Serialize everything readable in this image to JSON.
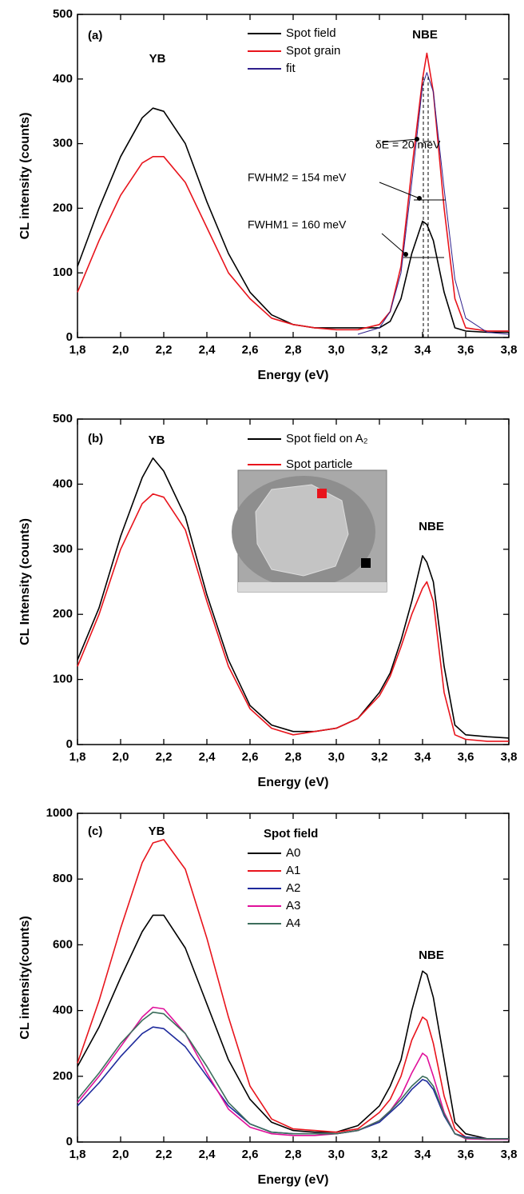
{
  "chart_data": [
    {
      "type": "line",
      "x": [
        1.8,
        1.9,
        2.0,
        2.1,
        2.15,
        2.2,
        2.3,
        2.4,
        2.5,
        2.6,
        2.7,
        2.8,
        2.9,
        3.0,
        3.1,
        3.2,
        3.25,
        3.3,
        3.35,
        3.4,
        3.42,
        3.45,
        3.5,
        3.55,
        3.6,
        3.7,
        3.8
      ],
      "series": [
        {
          "name": "Spot field",
          "color": "#000000",
          "values": [
            110,
            200,
            280,
            340,
            355,
            350,
            300,
            210,
            130,
            70,
            35,
            20,
            15,
            15,
            15,
            15,
            25,
            60,
            130,
            180,
            175,
            150,
            70,
            15,
            10,
            8,
            8
          ]
        },
        {
          "name": "Spot grain",
          "color": "#e8141c",
          "values": [
            70,
            150,
            220,
            270,
            280,
            280,
            240,
            170,
            100,
            60,
            30,
            20,
            15,
            12,
            12,
            20,
            40,
            110,
            260,
            400,
            440,
            380,
            200,
            60,
            15,
            10,
            10
          ]
        },
        {
          "name": "fit",
          "color": "#2e1f8c",
          "values": [
            null,
            null,
            null,
            null,
            null,
            null,
            null,
            null,
            null,
            null,
            null,
            null,
            null,
            null,
            5,
            15,
            40,
            100,
            240,
            390,
            410,
            380,
            230,
            90,
            30,
            8,
            5
          ]
        }
      ],
      "xlim": [
        1.8,
        3.8
      ],
      "ylim": [
        0,
        500
      ],
      "xticks": [
        {
          "value": 1.8,
          "label": "1,8"
        },
        {
          "value": 2.0,
          "label": "2,0"
        },
        {
          "value": 2.2,
          "label": "2,2"
        },
        {
          "value": 2.4,
          "label": "2,4"
        },
        {
          "value": 2.6,
          "label": "2,6"
        },
        {
          "value": 2.8,
          "label": "2,8"
        },
        {
          "value": 3.0,
          "label": "3,0"
        },
        {
          "value": 3.2,
          "label": "3,2"
        },
        {
          "value": 3.4,
          "label": "3,4"
        },
        {
          "value": 3.6,
          "label": "3,6"
        },
        {
          "value": 3.8,
          "label": "3,8"
        }
      ],
      "yticks": [
        0,
        100,
        200,
        300,
        400,
        500
      ],
      "x_label": "Energy (eV)",
      "y_label": "CL intensity (counts)",
      "annotations": [
        "(a)",
        "YB",
        "NBE",
        "δE = 20 meV",
        "FWHM2 = 154 meV",
        "FWHM1 = 160 meV"
      ]
    },
    {
      "type": "line",
      "x": [
        1.8,
        1.9,
        2.0,
        2.1,
        2.15,
        2.2,
        2.3,
        2.4,
        2.5,
        2.6,
        2.7,
        2.8,
        2.9,
        3.0,
        3.1,
        3.2,
        3.25,
        3.3,
        3.35,
        3.4,
        3.42,
        3.45,
        3.5,
        3.55,
        3.6,
        3.7,
        3.8
      ],
      "series": [
        {
          "name": "Spot field on A₂",
          "color": "#000000",
          "values": [
            130,
            210,
            320,
            410,
            440,
            420,
            350,
            230,
            130,
            60,
            30,
            20,
            20,
            25,
            40,
            80,
            110,
            160,
            220,
            290,
            280,
            250,
            120,
            30,
            15,
            12,
            10
          ]
        },
        {
          "name": "Spot particle",
          "color": "#e8141c",
          "values": [
            120,
            200,
            300,
            370,
            385,
            380,
            330,
            220,
            120,
            55,
            25,
            15,
            20,
            25,
            40,
            75,
            105,
            150,
            200,
            240,
            250,
            220,
            80,
            15,
            8,
            5,
            5
          ]
        }
      ],
      "xlim": [
        1.8,
        3.8
      ],
      "ylim": [
        0,
        500
      ],
      "xticks": [
        {
          "value": 1.8,
          "label": "1,8"
        },
        {
          "value": 2.0,
          "label": "2,0"
        },
        {
          "value": 2.2,
          "label": "2,2"
        },
        {
          "value": 2.4,
          "label": "2,4"
        },
        {
          "value": 2.6,
          "label": "2,6"
        },
        {
          "value": 2.8,
          "label": "2,8"
        },
        {
          "value": 3.0,
          "label": "3,0"
        },
        {
          "value": 3.2,
          "label": "3,2"
        },
        {
          "value": 3.4,
          "label": "3,4"
        },
        {
          "value": 3.6,
          "label": "3,6"
        },
        {
          "value": 3.8,
          "label": "3,8"
        }
      ],
      "yticks": [
        0,
        100,
        200,
        300,
        400,
        500
      ],
      "x_label": "Energy (eV)",
      "y_label": "CL Intensity (counts)",
      "annotations": [
        "(b)",
        "YB",
        "NBE"
      ]
    },
    {
      "type": "line",
      "x": [
        1.8,
        1.9,
        2.0,
        2.1,
        2.15,
        2.2,
        2.3,
        2.4,
        2.5,
        2.6,
        2.7,
        2.8,
        2.9,
        3.0,
        3.1,
        3.2,
        3.25,
        3.3,
        3.35,
        3.4,
        3.42,
        3.45,
        3.5,
        3.55,
        3.6,
        3.7,
        3.8
      ],
      "legend_title": "Spot field",
      "series": [
        {
          "name": "A0",
          "color": "#000000",
          "values": [
            230,
            350,
            500,
            640,
            690,
            690,
            590,
            420,
            250,
            130,
            60,
            35,
            30,
            30,
            50,
            110,
            170,
            250,
            400,
            520,
            510,
            440,
            250,
            60,
            25,
            10,
            10
          ]
        },
        {
          "name": "A1",
          "color": "#e8141c",
          "values": [
            240,
            430,
            650,
            850,
            910,
            920,
            830,
            620,
            380,
            170,
            70,
            40,
            35,
            30,
            40,
            90,
            130,
            200,
            310,
            380,
            370,
            300,
            140,
            40,
            15,
            10,
            10
          ]
        },
        {
          "name": "A2",
          "color": "#1e2a9c",
          "values": [
            110,
            180,
            260,
            330,
            350,
            345,
            290,
            200,
            110,
            55,
            30,
            25,
            25,
            25,
            35,
            60,
            90,
            120,
            160,
            190,
            185,
            160,
            80,
            25,
            15,
            10,
            10
          ]
        },
        {
          "name": "A3",
          "color": "#e0109a",
          "values": [
            120,
            200,
            290,
            380,
            410,
            405,
            330,
            210,
            100,
            45,
            25,
            20,
            20,
            25,
            35,
            65,
            95,
            140,
            210,
            270,
            260,
            200,
            90,
            25,
            10,
            8,
            8
          ]
        },
        {
          "name": "A4",
          "color": "#3c6e5c",
          "values": [
            130,
            210,
            300,
            370,
            395,
            390,
            330,
            230,
            120,
            55,
            30,
            25,
            25,
            25,
            35,
            65,
            95,
            130,
            170,
            200,
            195,
            170,
            85,
            25,
            12,
            10,
            10
          ]
        }
      ],
      "xlim": [
        1.8,
        3.8
      ],
      "ylim": [
        0,
        1000
      ],
      "xticks": [
        {
          "value": 1.8,
          "label": "1,8"
        },
        {
          "value": 2.0,
          "label": "2,0"
        },
        {
          "value": 2.2,
          "label": "2,2"
        },
        {
          "value": 2.4,
          "label": "2,4"
        },
        {
          "value": 2.6,
          "label": "2,6"
        },
        {
          "value": 2.8,
          "label": "2,8"
        },
        {
          "value": 3.0,
          "label": "3,0"
        },
        {
          "value": 3.2,
          "label": "3,2"
        },
        {
          "value": 3.4,
          "label": "3,4"
        },
        {
          "value": 3.6,
          "label": "3,6"
        },
        {
          "value": 3.8,
          "label": "3,8"
        }
      ],
      "yticks": [
        0,
        200,
        400,
        600,
        800,
        1000
      ],
      "x_label": "Energy (eV)",
      "y_label": "CL intensity(counts)",
      "annotations": [
        "(c)",
        "YB",
        "NBE"
      ]
    }
  ]
}
